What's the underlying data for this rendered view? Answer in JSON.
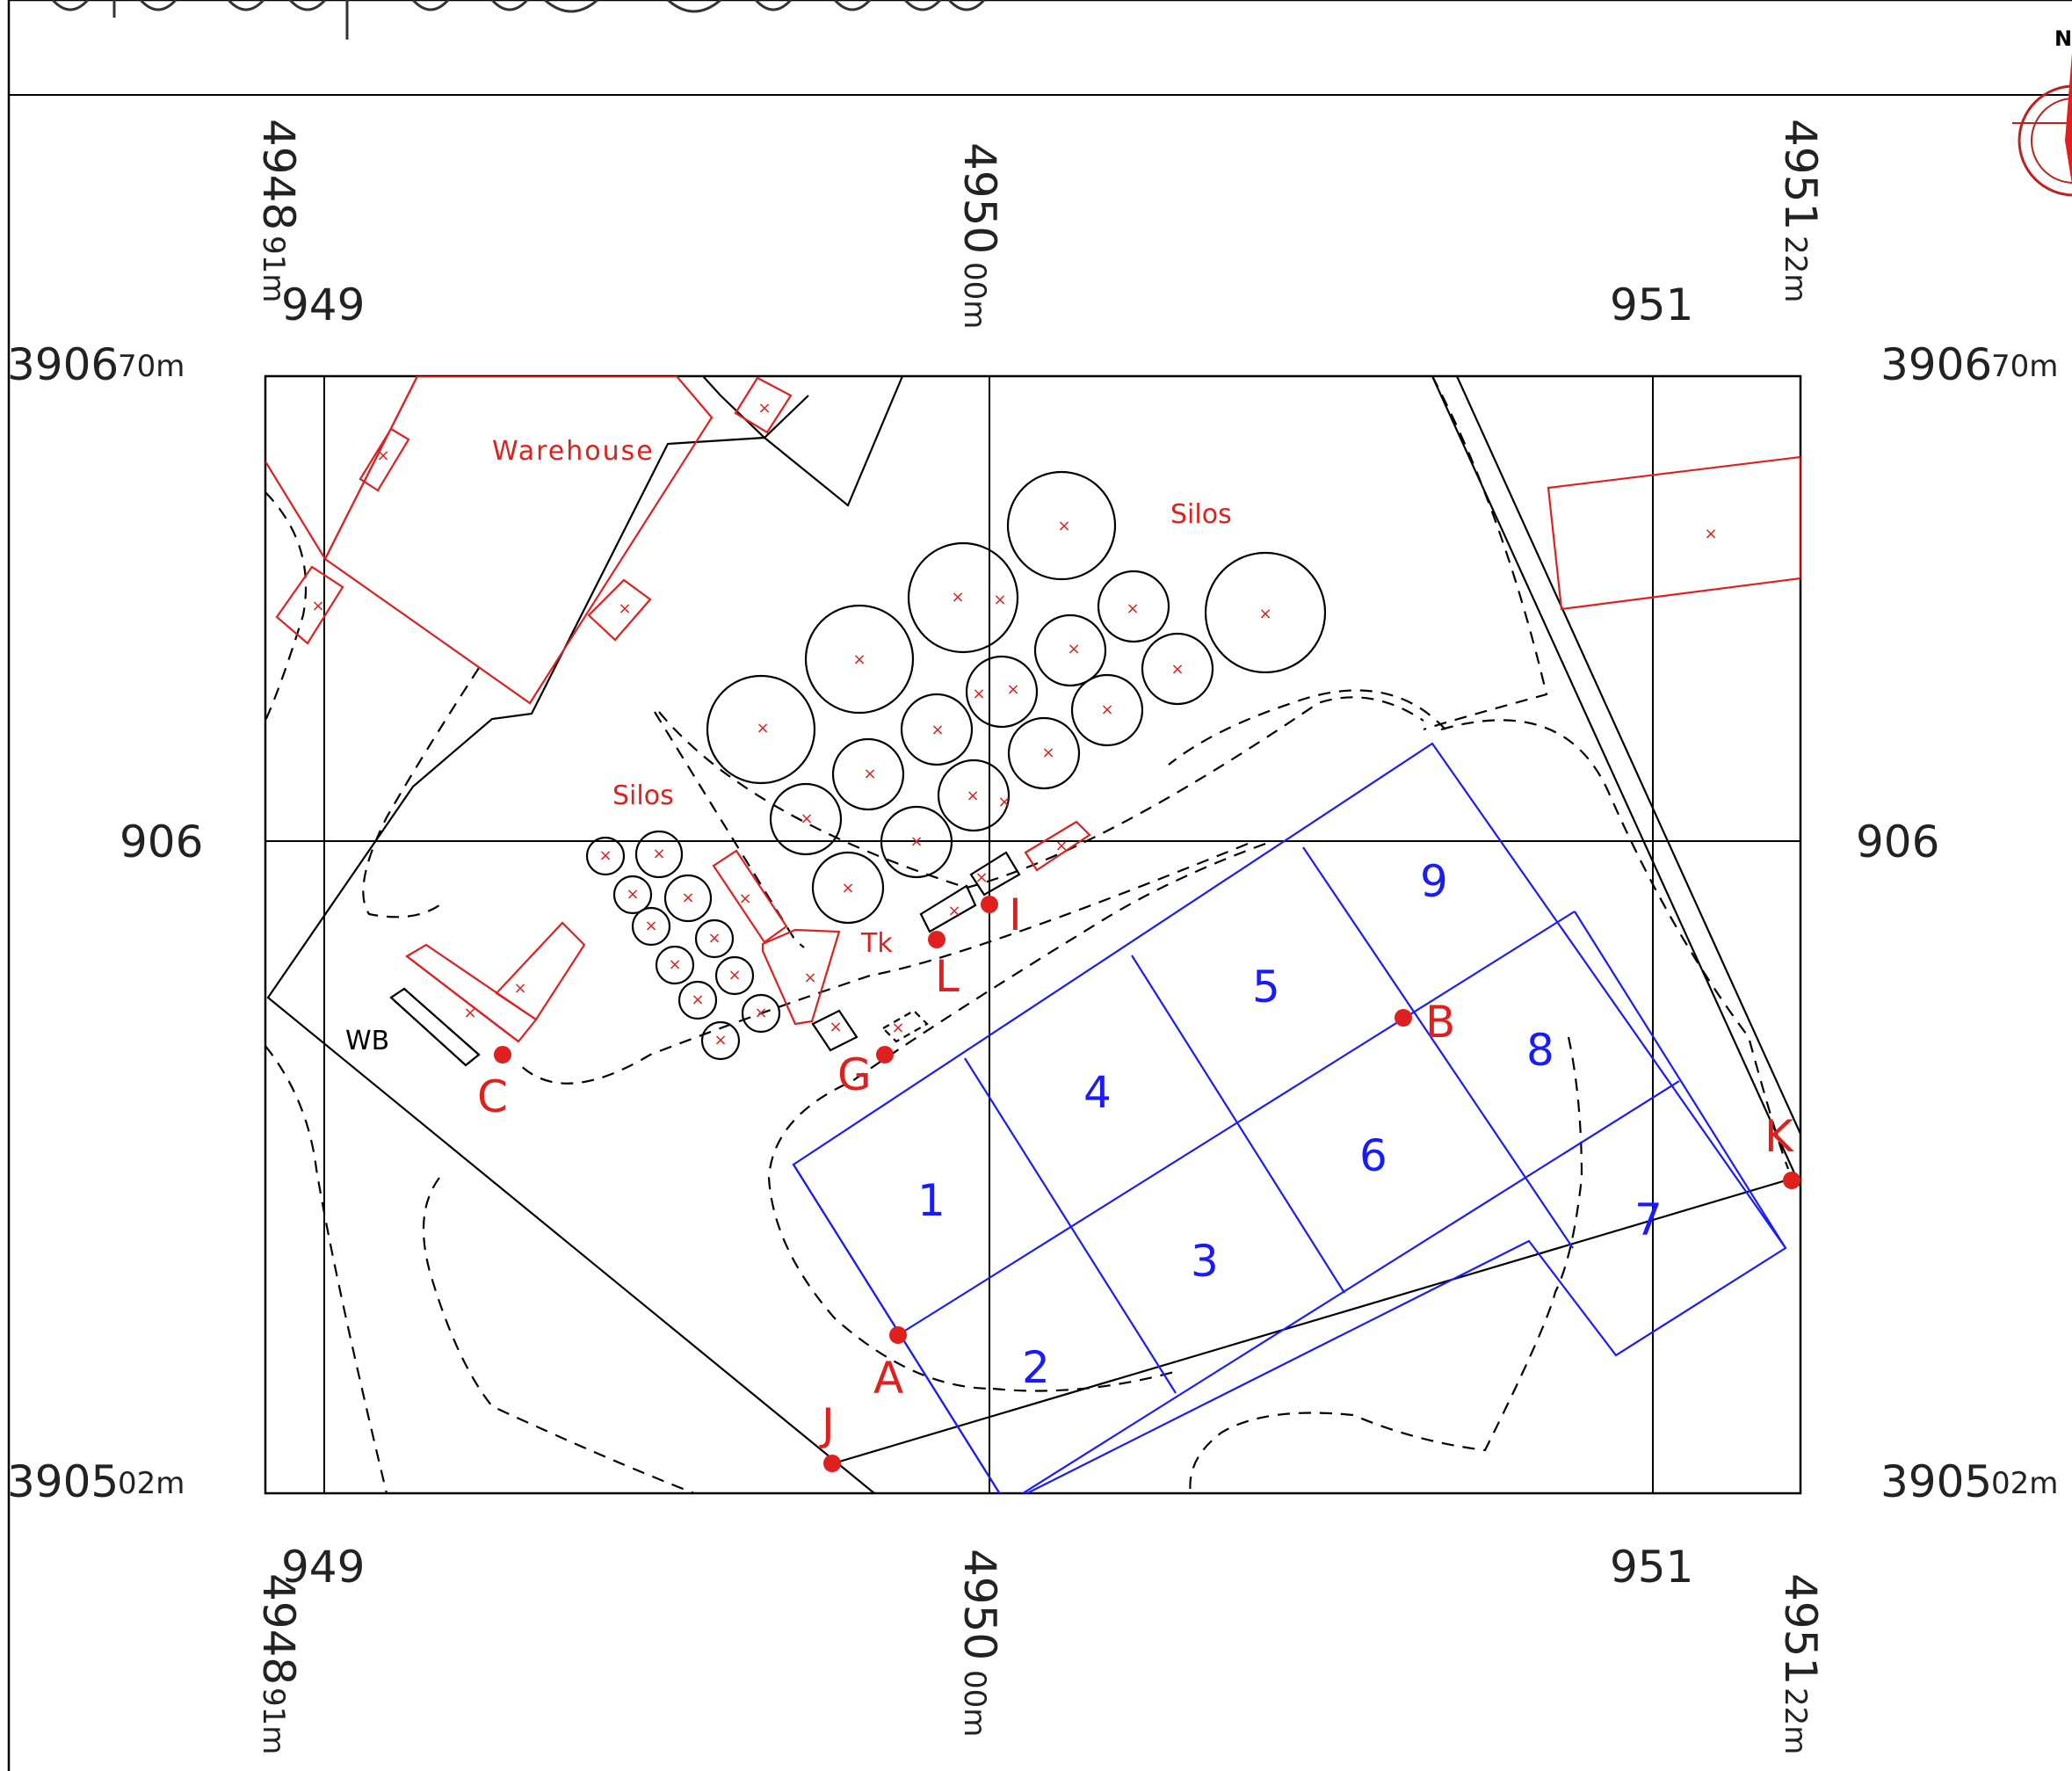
{
  "coordinates": {
    "top": {
      "e4948": "4948",
      "e4948_unit": "91m",
      "e4950": "4950",
      "e4950_unit": "00m",
      "e4951": "4951",
      "e4951_unit": "22m",
      "grid949": "949",
      "grid951": "951"
    },
    "bottom": {
      "e4948": "4948",
      "e4948_unit": "91m",
      "e4950": "4950",
      "e4950_unit": "00m",
      "e4951": "4951",
      "e4951_unit": "22m",
      "grid949": "949",
      "grid951": "951"
    },
    "left": {
      "n3906": "3906",
      "n3906_unit": "70m",
      "grid906": "906",
      "n3905": "3905",
      "n3905_unit": "02m"
    },
    "right": {
      "n3906": "3906",
      "n3906_unit": "70m",
      "grid906": "906",
      "n3905": "3905",
      "n3905_unit": "02m"
    }
  },
  "labels": {
    "warehouse": "Warehouse",
    "silos_upper": "Silos",
    "silos_lower": "Silos",
    "tk": "Tk",
    "wb": "WB"
  },
  "points": [
    {
      "id": "point-a",
      "label": "A"
    },
    {
      "id": "point-b",
      "label": "B"
    },
    {
      "id": "point-c",
      "label": "C"
    },
    {
      "id": "point-g",
      "label": "G"
    },
    {
      "id": "point-i",
      "label": "I"
    },
    {
      "id": "point-j",
      "label": "J"
    },
    {
      "id": "point-k",
      "label": "K"
    },
    {
      "id": "point-l",
      "label": "L"
    }
  ],
  "cells": [
    "1",
    "2",
    "3",
    "4",
    "5",
    "6",
    "7",
    "8",
    "9"
  ],
  "north_arrow": {
    "letter": "N",
    "icon": "north-arrow-icon"
  },
  "colors": {
    "feature_red": "#e0201e",
    "grid_blue": "#1a1aff",
    "line_black": "#000000"
  }
}
